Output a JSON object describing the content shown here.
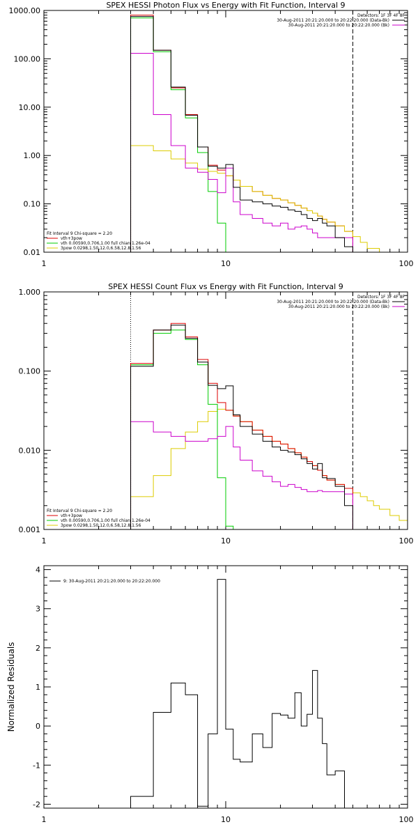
{
  "chart_data": [
    {
      "type": "line",
      "title": "SPEX HESSI Photon Flux vs Energy with Fit Function, Interval 9",
      "xscale": "log",
      "yscale": "log",
      "xlim": [
        1,
        100
      ],
      "ylim": [
        0.01,
        1000
      ],
      "xticks": [
        {
          "v": 1,
          "label": "1"
        },
        {
          "v": 10,
          "label": "10"
        },
        {
          "v": 100,
          "label": "100"
        }
      ],
      "yticks": [
        {
          "v": 0.01,
          "label": "0.01"
        },
        {
          "v": 0.1,
          "label": "0.10"
        },
        {
          "v": 1,
          "label": "1.00"
        },
        {
          "v": 10,
          "label": "10.00"
        },
        {
          "v": 100,
          "label": "100.00"
        },
        {
          "v": 1000,
          "label": "1000.00"
        }
      ],
      "vlines": [
        {
          "x": 3,
          "style": "dotted"
        },
        {
          "x": 50,
          "style": "dashed"
        }
      ],
      "legend_top": [
        {
          "text": "Detectors: 1F 3F 4F 8F",
          "color": ""
        },
        {
          "text": "30-Aug-2011 20:21:20.000 to 20:22:20.000 (Data-Bk)",
          "color": "#000000"
        },
        {
          "text": "30-Aug-2011 20:21:20.000 to 20:22:20.000 (Bk)",
          "color": "#cc00cc"
        }
      ],
      "legend_bottom": [
        {
          "text": "Fit Interval 9   Chi-square = 2.20",
          "color": ""
        },
        {
          "text": "vth+3pow",
          "color": "#dd0000"
        },
        {
          "text": "vth 0.00590,0.706,1.00  full chian 1.26e-04",
          "color": "#00cc00"
        },
        {
          "text": "3pow 0.0298,1.50,12.0,6.58,12.8,1.56",
          "color": "#ddcc00"
        }
      ],
      "x_edges": [
        3,
        4,
        5,
        6,
        7,
        8,
        9,
        10,
        11,
        12,
        14,
        16,
        18,
        20,
        22,
        24,
        26,
        28,
        30,
        32,
        34,
        36,
        40,
        45,
        50,
        55,
        60,
        70
      ],
      "series": [
        {
          "name": "vth+3pow",
          "color": "#dd0000",
          "x_end": 50,
          "values": [
            800,
            150,
            25,
            7,
            1.5,
            0.63,
            0.5,
            0.38,
            0.31,
            0.23,
            0.18,
            0.15,
            0.13,
            0.12,
            0.105,
            0.093,
            0.082,
            0.072,
            0.064,
            0.056,
            0.048,
            0.042,
            0.035,
            0.027
          ]
        },
        {
          "name": "vth",
          "color": "#00cc00",
          "x_end": 10,
          "values": [
            700,
            140,
            23,
            6,
            1.15,
            0.18,
            0.04
          ]
        },
        {
          "name": "3pow",
          "color": "#ddcc00",
          "x_end": 70,
          "values": [
            1.6,
            1.25,
            0.85,
            0.7,
            0.52,
            0.47,
            0.43,
            0.38,
            0.31,
            0.23,
            0.18,
            0.15,
            0.13,
            0.12,
            0.105,
            0.093,
            0.082,
            0.072,
            0.064,
            0.056,
            0.048,
            0.042,
            0.035,
            0.027,
            0.021,
            0.016,
            0.012
          ]
        },
        {
          "name": "Bk",
          "color": "#cc00cc",
          "x_end": 50,
          "values": [
            130,
            7,
            1.6,
            0.55,
            0.45,
            0.32,
            0.17,
            0.55,
            0.11,
            0.06,
            0.05,
            0.04,
            0.035,
            0.04,
            0.03,
            0.033,
            0.035,
            0.03,
            0.025,
            0.02,
            0.02,
            0.02,
            0.02,
            0.02
          ]
        },
        {
          "name": "Data-Bk",
          "color": "#000000",
          "x_end": 50,
          "values": [
            750,
            150,
            26,
            6.8,
            1.5,
            0.6,
            0.55,
            0.65,
            0.22,
            0.12,
            0.11,
            0.1,
            0.09,
            0.085,
            0.075,
            0.07,
            0.06,
            0.05,
            0.045,
            0.05,
            0.04,
            0.035,
            0.02,
            0.013
          ]
        }
      ]
    },
    {
      "type": "line",
      "title": "SPEX HESSI Count Flux vs Energy with Fit Function, Interval 9",
      "xscale": "log",
      "yscale": "log",
      "xlim": [
        1,
        100
      ],
      "ylim": [
        0.001,
        1
      ],
      "xticks": [
        {
          "v": 1,
          "label": "1"
        },
        {
          "v": 10,
          "label": "10"
        },
        {
          "v": 100,
          "label": "100"
        }
      ],
      "yticks": [
        {
          "v": 0.001,
          "label": "0.001"
        },
        {
          "v": 0.01,
          "label": "0.010"
        },
        {
          "v": 0.1,
          "label": "0.100"
        },
        {
          "v": 1,
          "label": "1.000"
        }
      ],
      "vlines": [
        {
          "x": 3,
          "style": "dotted"
        },
        {
          "x": 50,
          "style": "dashed"
        }
      ],
      "legend_top": [
        {
          "text": "Detectors: 1F 3F 4F 8F",
          "color": ""
        },
        {
          "text": "30-Aug-2011 20:21:20.000 to 20:22:20.000 (Data-Bk)",
          "color": "#000000"
        },
        {
          "text": "30-Aug-2011 20:21:20.000 to 20:22:20.000 (Bk)",
          "color": "#cc00cc"
        }
      ],
      "legend_bottom": [
        {
          "text": "Fit Interval 9   Chi-square = 2.20",
          "color": ""
        },
        {
          "text": "vth+3pow",
          "color": "#dd0000"
        },
        {
          "text": "vth 0.00590,0.706,1.00  full chian 1.26e-04",
          "color": "#00cc00"
        },
        {
          "text": "3pow 0.0298,1.50,12.0,6.58,12.8,1.56",
          "color": "#ddcc00"
        }
      ],
      "x_edges": [
        3,
        4,
        5,
        6,
        7,
        8,
        9,
        10,
        11,
        12,
        14,
        16,
        18,
        20,
        22,
        24,
        26,
        28,
        30,
        32,
        34,
        36,
        40,
        45,
        50,
        55,
        60,
        65,
        70,
        80,
        90,
        100
      ],
      "series": [
        {
          "name": "3pow",
          "color": "#ddcc00",
          "x_end": 100,
          "values": [
            0.0026,
            0.0048,
            0.0105,
            0.017,
            0.023,
            0.031,
            0.033,
            0.032,
            0.027,
            0.023,
            0.018,
            0.015,
            0.013,
            0.012,
            0.0105,
            0.0093,
            0.0082,
            0.0072,
            0.0064,
            0.0056,
            0.0048,
            0.0042,
            0.0037,
            0.0033,
            0.0029,
            0.0026,
            0.0023,
            0.002,
            0.0018,
            0.0015,
            0.0013
          ]
        },
        {
          "name": "vth",
          "color": "#00cc00",
          "x_end": 11,
          "values": [
            0.12,
            0.3,
            0.33,
            0.25,
            0.12,
            0.038,
            0.0045,
            0.0011
          ]
        },
        {
          "name": "vth+3pow",
          "color": "#dd0000",
          "x_end": 50,
          "values": [
            0.125,
            0.33,
            0.4,
            0.27,
            0.14,
            0.07,
            0.04,
            0.032,
            0.027,
            0.023,
            0.018,
            0.015,
            0.013,
            0.012,
            0.0105,
            0.0093,
            0.0082,
            0.0072,
            0.0064,
            0.0056,
            0.0048,
            0.0042,
            0.0037,
            0.0033
          ]
        },
        {
          "name": "Bk",
          "color": "#cc00cc",
          "x_end": 50,
          "values": [
            0.023,
            0.017,
            0.015,
            0.013,
            0.013,
            0.014,
            0.015,
            0.02,
            0.011,
            0.0075,
            0.0055,
            0.0047,
            0.004,
            0.0035,
            0.0037,
            0.0034,
            0.0032,
            0.003,
            0.003,
            0.0031,
            0.003,
            0.003,
            0.003,
            0.0028
          ]
        },
        {
          "name": "Data-Bk",
          "color": "#000000",
          "x_end": 50,
          "values": [
            0.115,
            0.33,
            0.38,
            0.26,
            0.13,
            0.066,
            0.06,
            0.065,
            0.028,
            0.02,
            0.016,
            0.013,
            0.011,
            0.01,
            0.0095,
            0.0088,
            0.0078,
            0.0068,
            0.0058,
            0.0068,
            0.0045,
            0.0044,
            0.0035,
            0.002
          ]
        }
      ]
    },
    {
      "type": "line",
      "title": "",
      "ylabel": "Normalized Residuals",
      "xscale": "log",
      "yscale": "linear",
      "xlim": [
        1,
        100
      ],
      "ylim": [
        -2.1,
        4.1
      ],
      "xticks": [
        {
          "v": 1,
          "label": "1"
        },
        {
          "v": 10,
          "label": "10"
        },
        {
          "v": 100,
          "label": "100"
        }
      ],
      "yticks": [
        {
          "v": -2,
          "label": "-2"
        },
        {
          "v": -1,
          "label": "-1"
        },
        {
          "v": 0,
          "label": "0"
        },
        {
          "v": 1,
          "label": "1"
        },
        {
          "v": 2,
          "label": "2"
        },
        {
          "v": 3,
          "label": "3"
        },
        {
          "v": 4,
          "label": "4"
        }
      ],
      "vlines": [],
      "legend_top_left": [
        {
          "text": "9: 30-Aug-2011 20:21:20.000 to 20:22:20.000",
          "color": "#000000"
        }
      ],
      "x_edges": [
        3,
        4,
        5,
        6,
        7,
        8,
        9,
        10,
        11,
        12,
        14,
        16,
        18,
        20,
        22,
        24,
        26,
        28,
        30,
        32,
        34,
        36,
        40,
        45,
        50
      ],
      "series": [
        {
          "name": "",
          "color": "#000000",
          "x_end": 50,
          "values": [
            -1.8,
            0.35,
            1.1,
            0.8,
            -2.05,
            -0.2,
            3.75,
            -0.08,
            -0.85,
            -0.92,
            -0.2,
            -0.55,
            0.32,
            0.28,
            0.2,
            0.85,
            0.0,
            0.3,
            1.42,
            0.2,
            -0.45,
            -1.25,
            -1.15,
            -2.1
          ]
        }
      ]
    }
  ]
}
